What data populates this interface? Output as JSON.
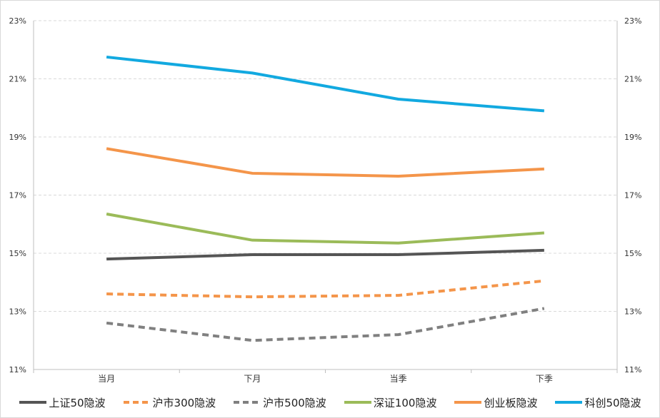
{
  "chart_data": {
    "type": "line",
    "categories": [
      "当月",
      "下月",
      "当季",
      "下季"
    ],
    "ylim": [
      11,
      23
    ],
    "yticks": [
      "11%",
      "13%",
      "15%",
      "17%",
      "19%",
      "21%",
      "23%"
    ],
    "ytick_values": [
      11,
      13,
      15,
      17,
      19,
      21,
      23
    ],
    "secondary_axis": true,
    "grid": "horizontal dashed",
    "legend_position": "bottom",
    "series": [
      {
        "name": "上证50隐波",
        "values": [
          14.8,
          14.95,
          14.95,
          15.1
        ],
        "color": "#555555",
        "style": "solid"
      },
      {
        "name": "沪市300隐波",
        "values": [
          13.6,
          13.5,
          13.55,
          14.05
        ],
        "color": "#F4954A",
        "style": "dashed"
      },
      {
        "name": "沪市500隐波",
        "values": [
          12.6,
          12.0,
          12.2,
          13.1
        ],
        "color": "#808080",
        "style": "dashed"
      },
      {
        "name": "深证100隐波",
        "values": [
          16.35,
          15.45,
          15.35,
          15.7
        ],
        "color": "#9BBB59",
        "style": "solid"
      },
      {
        "name": "创业板隐波",
        "values": [
          18.6,
          17.75,
          17.65,
          17.9
        ],
        "color": "#F4954A",
        "style": "solid"
      },
      {
        "name": "科创50隐波",
        "values": [
          21.75,
          21.2,
          20.3,
          19.9
        ],
        "color": "#12A9E0",
        "style": "solid"
      }
    ]
  }
}
